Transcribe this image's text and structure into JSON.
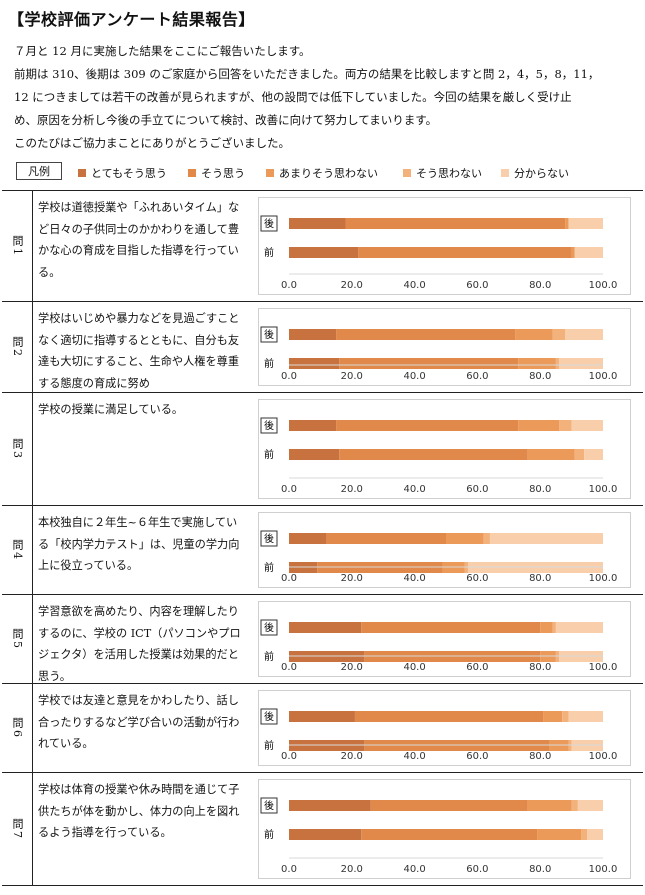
{
  "title": "【学校評価アンケート結果報告】",
  "intro": [
    "７月と 12 月に実施した結果をここにご報告いたします。",
    "前期は 310、後期は 309 のご家庭から回答をいただきました。両方の結果を比較しますと問 2，4，5，8，11，",
    "12 につきましては若干の改善が見られますが、他の設問では低下していました。今回の結果を厳しく受け止",
    "め、原因を分析し今後の手立てについて検討、改善に向けて努力してまいります。",
    "このたびはご協力まことにありがとうございました。"
  ],
  "legend": {
    "label": "凡例",
    "items": [
      {
        "label": "とてもそう思う",
        "color": "#c8733f"
      },
      {
        "label": "そう思う",
        "color": "#e0894a"
      },
      {
        "label": "あまりそう思わない",
        "color": "#eb9a5a"
      },
      {
        "label": "そう思わない",
        "color": "#f3b27c"
      },
      {
        "label": "分からない",
        "color": "#f8cfaa"
      }
    ]
  },
  "axis_ticks": [
    "0.0",
    "20.0",
    "40.0",
    "60.0",
    "80.0",
    "100.0"
  ],
  "bar_labels": {
    "after": "後",
    "before": "前"
  },
  "chart_data": [
    {
      "type": "bar",
      "question": "問1",
      "orientation": "horizontal",
      "stacked": true,
      "xlim": [
        0,
        100
      ],
      "categories": [
        "後",
        "前"
      ],
      "series": [
        {
          "name": "とてもそう思う",
          "values": [
            18,
            22
          ]
        },
        {
          "name": "そう思う",
          "values": [
            70,
            68
          ]
        },
        {
          "name": "あまりそう思わない",
          "values": [
            1,
            1
          ]
        },
        {
          "name": "そう思わない",
          "values": [
            0,
            0
          ]
        },
        {
          "name": "分からない",
          "values": [
            11,
            9
          ]
        }
      ]
    },
    {
      "type": "bar",
      "question": "問2",
      "orientation": "horizontal",
      "stacked": true,
      "xlim": [
        0,
        100
      ],
      "categories": [
        "後",
        "前"
      ],
      "series": [
        {
          "name": "とてもそう思う",
          "values": [
            15,
            16
          ]
        },
        {
          "name": "そう思う",
          "values": [
            57,
            57
          ]
        },
        {
          "name": "あまりそう思わない",
          "values": [
            12,
            12
          ]
        },
        {
          "name": "そう思わない",
          "values": [
            4,
            1
          ]
        },
        {
          "name": "分からない",
          "values": [
            12,
            14
          ]
        }
      ]
    },
    {
      "type": "bar",
      "question": "問3",
      "orientation": "horizontal",
      "stacked": true,
      "xlim": [
        0,
        100
      ],
      "categories": [
        "後",
        "前"
      ],
      "series": [
        {
          "name": "とてもそう思う",
          "values": [
            15,
            16
          ]
        },
        {
          "name": "そう思う",
          "values": [
            58,
            60
          ]
        },
        {
          "name": "あまりそう思わない",
          "values": [
            13,
            15
          ]
        },
        {
          "name": "そう思わない",
          "values": [
            4,
            3
          ]
        },
        {
          "name": "分からない",
          "values": [
            10,
            6
          ]
        }
      ]
    },
    {
      "type": "bar",
      "question": "問4",
      "orientation": "horizontal",
      "stacked": true,
      "xlim": [
        0,
        100
      ],
      "categories": [
        "後",
        "前"
      ],
      "series": [
        {
          "name": "とてもそう思う",
          "values": [
            12,
            9
          ]
        },
        {
          "name": "そう思う",
          "values": [
            38,
            40
          ]
        },
        {
          "name": "あまりそう思わない",
          "values": [
            12,
            7
          ]
        },
        {
          "name": "そう思わない",
          "values": [
            2,
            1
          ]
        },
        {
          "name": "分からない",
          "values": [
            36,
            43
          ]
        }
      ]
    },
    {
      "type": "bar",
      "question": "問5",
      "orientation": "horizontal",
      "stacked": true,
      "xlim": [
        0,
        100
      ],
      "categories": [
        "後",
        "前"
      ],
      "series": [
        {
          "name": "とてもそう思う",
          "values": [
            23,
            24
          ]
        },
        {
          "name": "そう思う",
          "values": [
            57,
            56
          ]
        },
        {
          "name": "あまりそう思わない",
          "values": [
            4,
            5
          ]
        },
        {
          "name": "そう思わない",
          "values": [
            1,
            1
          ]
        },
        {
          "name": "分からない",
          "values": [
            15,
            14
          ]
        }
      ]
    },
    {
      "type": "bar",
      "question": "問6",
      "orientation": "horizontal",
      "stacked": true,
      "xlim": [
        0,
        100
      ],
      "categories": [
        "後",
        "前"
      ],
      "series": [
        {
          "name": "とてもそう思う",
          "values": [
            21,
            24
          ]
        },
        {
          "name": "そう思う",
          "values": [
            60,
            59
          ]
        },
        {
          "name": "あまりそう思わない",
          "values": [
            6,
            6
          ]
        },
        {
          "name": "そう思わない",
          "values": [
            2,
            1
          ]
        },
        {
          "name": "分からない",
          "values": [
            11,
            10
          ]
        }
      ]
    },
    {
      "type": "bar",
      "question": "問7",
      "orientation": "horizontal",
      "stacked": true,
      "xlim": [
        0,
        100
      ],
      "categories": [
        "後",
        "前"
      ],
      "series": [
        {
          "name": "とてもそう思う",
          "values": [
            26,
            23
          ]
        },
        {
          "name": "そう思う",
          "values": [
            50,
            56
          ]
        },
        {
          "name": "あまりそう思わない",
          "values": [
            14,
            14
          ]
        },
        {
          "name": "そう思わない",
          "values": [
            2,
            2
          ]
        },
        {
          "name": "分からない",
          "values": [
            8,
            5
          ]
        }
      ]
    }
  ],
  "questions": [
    {
      "label": "問1",
      "text": "学校は道徳授業や「ふれあいタイム」など日々の子供同士のかかわりを通して豊かな心の育成を目指した指導を行っている。"
    },
    {
      "label": "問2",
      "text": "学校はいじめや暴力などを見過ごすことなく適切に指導するとともに、自分も友達も大切にすること、生命や人権を尊重する態度の育成に努め"
    },
    {
      "label": "問3",
      "text": "学校の授業に満足している。"
    },
    {
      "label": "問4",
      "text": "本校独自に２年生~６年生で実施している「校内学力テスト」は、児童の学力向上に役立っている。"
    },
    {
      "label": "問5",
      "text": "学習意欲を高めたり、内容を理解したりするのに、学校の ICT（パソコンやプロジェクタ）を活用した授業は効果的だと思う。"
    },
    {
      "label": "問6",
      "text": "学校では友達と意見をかわしたり、話し合ったりするなど学び合いの活動が行われている。"
    },
    {
      "label": "問7",
      "text": "学校は体育の授業や休み時間を通じて子供たちが体を動かし、体力の向上を図れるよう指導を行っている。"
    }
  ]
}
